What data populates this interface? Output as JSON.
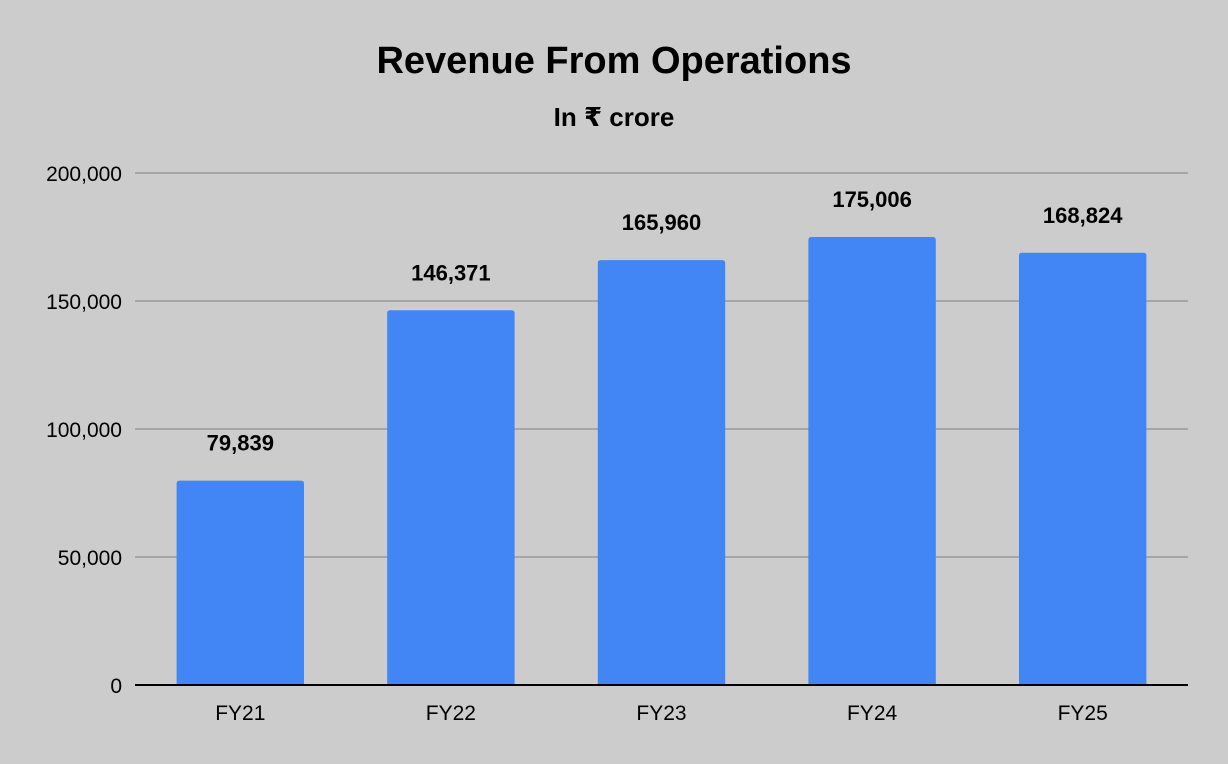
{
  "chart_data": {
    "type": "bar",
    "title": "Revenue From Operations",
    "subtitle": "In ₹ crore",
    "categories": [
      "FY21",
      "FY22",
      "FY23",
      "FY24",
      "FY25"
    ],
    "values": [
      79839,
      146371,
      165960,
      175006,
      168824
    ],
    "data_labels": [
      "79,839",
      "146,371",
      "165,960",
      "175,006",
      "168,824"
    ],
    "y_ticks": [
      0,
      50000,
      100000,
      150000,
      200000
    ],
    "y_tick_labels": [
      "0",
      "50,000",
      "100,000",
      "150,000",
      "200,000"
    ],
    "ylim": [
      0,
      200000
    ],
    "xlabel": "",
    "ylabel": "",
    "grid": true,
    "legend": "none",
    "colors": {
      "background": "#cccccc",
      "bar": "#4285f4",
      "gridline": "#999999",
      "axis": "#000000",
      "text": "#000000"
    }
  }
}
